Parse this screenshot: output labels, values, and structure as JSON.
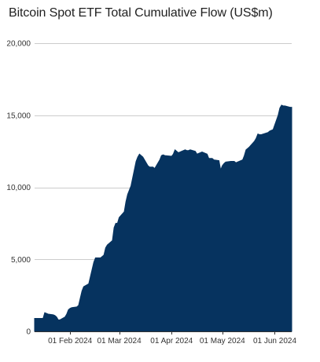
{
  "chart_data": {
    "type": "area",
    "title": "Bitcoin Spot ETF Total Cumulative Flow (US$m)",
    "xlabel": "",
    "ylabel": "",
    "ylim": [
      0,
      20000
    ],
    "xlim": [
      "2024-01-11",
      "2024-06-11"
    ],
    "yticks": [
      0,
      5000,
      10000,
      15000,
      20000
    ],
    "ytick_labels": [
      "0",
      "5,000",
      "10,000",
      "15,000",
      "20,000"
    ],
    "xticks": [
      "2024-02-01",
      "2024-03-01",
      "2024-04-01",
      "2024-05-01",
      "2024-06-01"
    ],
    "xtick_labels": [
      "01 Feb 2024",
      "01 Mar 2024",
      "01 Apr 2024",
      "01 May 2024",
      "01 Jun 2024"
    ],
    "grid": true,
    "color": "#06335f",
    "series": [
      {
        "x": [
          "2024-01-11",
          "2024-01-15",
          "2024-01-16",
          "2024-01-17",
          "2024-01-18",
          "2024-01-19",
          "2024-01-22",
          "2024-01-23",
          "2024-01-24",
          "2024-01-25",
          "2024-01-26",
          "2024-01-29",
          "2024-01-30",
          "2024-01-31",
          "2024-02-01",
          "2024-02-02",
          "2024-02-05",
          "2024-02-06",
          "2024-02-07",
          "2024-02-08",
          "2024-02-09",
          "2024-02-12",
          "2024-02-13",
          "2024-02-14",
          "2024-02-15",
          "2024-02-16",
          "2024-02-19",
          "2024-02-20",
          "2024-02-21",
          "2024-02-22",
          "2024-02-23",
          "2024-02-26",
          "2024-02-27",
          "2024-02-28",
          "2024-02-29",
          "2024-03-01",
          "2024-03-04",
          "2024-03-05",
          "2024-03-06",
          "2024-03-07",
          "2024-03-08",
          "2024-03-11",
          "2024-03-12",
          "2024-03-13",
          "2024-03-14",
          "2024-03-15",
          "2024-03-18",
          "2024-03-19",
          "2024-03-20",
          "2024-03-21",
          "2024-03-22",
          "2024-03-25",
          "2024-03-26",
          "2024-03-27",
          "2024-03-28",
          "2024-04-01",
          "2024-04-02",
          "2024-04-03",
          "2024-04-04",
          "2024-04-05",
          "2024-04-08",
          "2024-04-09",
          "2024-04-10",
          "2024-04-11",
          "2024-04-12",
          "2024-04-15",
          "2024-04-16",
          "2024-04-17",
          "2024-04-18",
          "2024-04-19",
          "2024-04-22",
          "2024-04-23",
          "2024-04-24",
          "2024-04-25",
          "2024-04-26",
          "2024-04-29",
          "2024-04-30",
          "2024-05-01",
          "2024-05-02",
          "2024-05-03",
          "2024-05-06",
          "2024-05-07",
          "2024-05-08",
          "2024-05-09",
          "2024-05-10",
          "2024-05-13",
          "2024-05-14",
          "2024-05-15",
          "2024-05-16",
          "2024-05-17",
          "2024-05-20",
          "2024-05-21",
          "2024-05-22",
          "2024-05-23",
          "2024-05-24",
          "2024-05-28",
          "2024-05-29",
          "2024-05-30",
          "2024-05-31",
          "2024-06-03",
          "2024-06-04",
          "2024-06-05",
          "2024-06-06",
          "2024-06-07",
          "2024-06-10",
          "2024-06-11"
        ],
        "values": [
          900,
          900,
          900,
          1300,
          1250,
          1200,
          1150,
          1100,
          1000,
          800,
          800,
          1000,
          1200,
          1500,
          1600,
          1650,
          1700,
          1800,
          2300,
          2800,
          3100,
          3300,
          3800,
          4300,
          4800,
          5100,
          5100,
          5200,
          5300,
          5800,
          6000,
          6300,
          7200,
          7500,
          7500,
          7900,
          8300,
          9000,
          9500,
          9800,
          10100,
          11800,
          12100,
          12300,
          12200,
          12100,
          11500,
          11400,
          11400,
          11400,
          11300,
          11900,
          12200,
          12250,
          12200,
          12150,
          12300,
          12600,
          12500,
          12400,
          12550,
          12600,
          12550,
          12550,
          12600,
          12500,
          12300,
          12350,
          12400,
          12450,
          12300,
          12000,
          12000,
          12000,
          11900,
          11850,
          11200,
          11500,
          11650,
          11750,
          11800,
          11800,
          11800,
          11700,
          11750,
          11900,
          12200,
          12600,
          12700,
          12800,
          13200,
          13400,
          13700,
          13650,
          13650,
          13800,
          13900,
          13950,
          14000,
          15000,
          15500,
          15700,
          15650,
          15650,
          15550,
          15550
        ]
      }
    ]
  }
}
